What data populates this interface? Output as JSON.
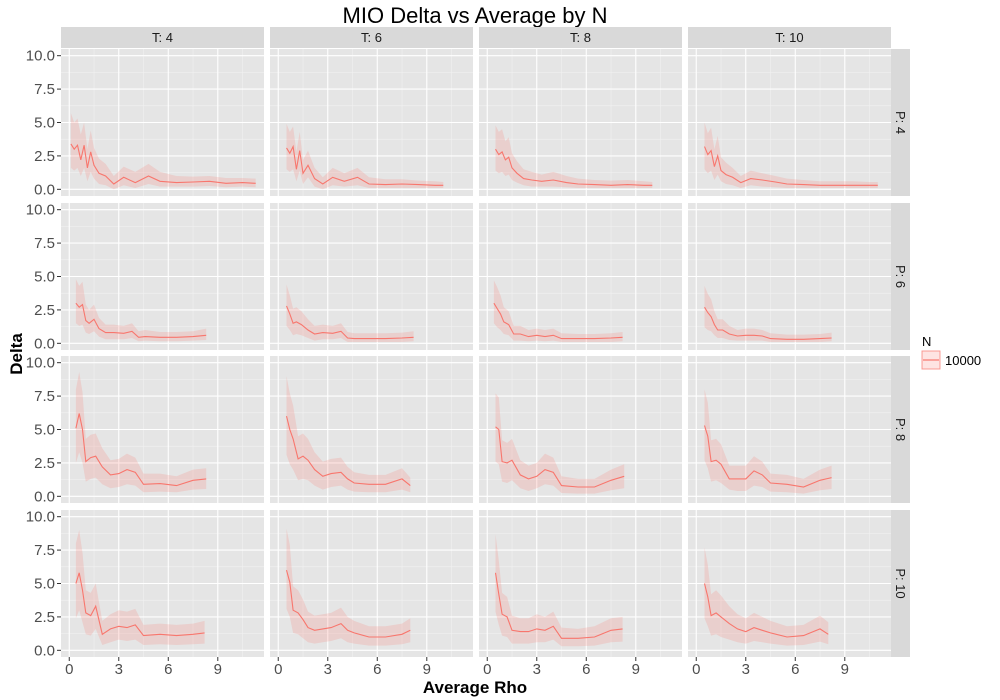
{
  "chart_data": {
    "type": "line",
    "title": "MIO Delta vs Average by N",
    "xlabel": "Average Rho",
    "ylabel": "Delta",
    "xlim": [
      -0.5,
      11.8
    ],
    "ylim": [
      -0.5,
      10.5
    ],
    "x_ticks": [
      0,
      3,
      6,
      9
    ],
    "x_tick_labels": [
      "0",
      "3",
      "6",
      "9"
    ],
    "y_ticks": [
      0,
      2.5,
      5,
      7.5,
      10
    ],
    "y_tick_labels": [
      "0.0",
      "2.5",
      "5.0",
      "7.5",
      "10.0"
    ],
    "grid": true,
    "legend": {
      "title": "N",
      "position": "right",
      "entries": [
        {
          "label": "10000",
          "color": "#f8766d"
        }
      ]
    },
    "facet_cols": [
      "T: 4",
      "T: 6",
      "T: 8",
      "T: 10"
    ],
    "facet_rows": [
      "P: 4",
      "P: 6",
      "P: 8",
      "P: 10"
    ],
    "line_color": "#f8766d",
    "ribbon_color": "#f8766d",
    "panels": [
      {
        "row": 0,
        "col": 0,
        "x": [
          0.1,
          0.3,
          0.5,
          0.7,
          0.9,
          1.1,
          1.3,
          1.5,
          1.8,
          2.2,
          2.7,
          3.3,
          4.0,
          4.8,
          5.5,
          6.5,
          7.5,
          8.5,
          9.5,
          10.5,
          11.3
        ],
        "y": [
          3.4,
          3.0,
          3.3,
          2.2,
          3.3,
          1.6,
          2.8,
          1.8,
          1.2,
          1.0,
          0.4,
          0.9,
          0.5,
          1.0,
          0.6,
          0.5,
          0.55,
          0.6,
          0.45,
          0.5,
          0.45
        ],
        "lower": [
          1.6,
          1.4,
          1.6,
          1.0,
          1.6,
          0.6,
          1.3,
          0.8,
          0.4,
          0.3,
          0.0,
          0.3,
          0.1,
          0.4,
          0.2,
          0.2,
          0.2,
          0.25,
          0.15,
          0.2,
          0.15
        ],
        "upper": [
          5.7,
          5.0,
          5.3,
          4.1,
          5.0,
          3.0,
          4.4,
          3.1,
          2.3,
          1.9,
          1.0,
          1.7,
          1.3,
          1.9,
          1.3,
          1.0,
          0.95,
          1.0,
          0.85,
          0.85,
          0.8
        ]
      },
      {
        "row": 0,
        "col": 1,
        "x": [
          0.5,
          0.7,
          0.9,
          1.1,
          1.3,
          1.5,
          1.8,
          2.2,
          2.7,
          3.3,
          4.0,
          4.8,
          5.5,
          6.5,
          7.5,
          8.5,
          9.5,
          10.0
        ],
        "y": [
          3.1,
          2.7,
          3.2,
          1.5,
          2.9,
          1.2,
          1.8,
          0.8,
          0.4,
          0.9,
          0.6,
          0.9,
          0.4,
          0.35,
          0.4,
          0.35,
          0.3,
          0.3
        ],
        "lower": [
          1.5,
          1.3,
          1.5,
          0.6,
          1.4,
          0.4,
          0.9,
          0.2,
          0.0,
          0.3,
          0.2,
          0.3,
          0.1,
          0.1,
          0.1,
          0.1,
          0.1,
          0.1
        ],
        "upper": [
          4.9,
          4.3,
          4.7,
          2.8,
          4.3,
          2.2,
          2.9,
          1.6,
          0.9,
          1.6,
          1.2,
          1.6,
          0.9,
          0.75,
          0.75,
          0.65,
          0.6,
          0.55
        ]
      },
      {
        "row": 0,
        "col": 2,
        "x": [
          0.5,
          0.7,
          0.9,
          1.1,
          1.3,
          1.5,
          1.8,
          2.2,
          2.7,
          3.3,
          4.0,
          4.8,
          5.5,
          6.5,
          7.5,
          8.5,
          9.5,
          10.0
        ],
        "y": [
          3.0,
          2.6,
          2.8,
          2.2,
          2.4,
          1.6,
          1.2,
          0.8,
          0.7,
          0.6,
          0.7,
          0.5,
          0.4,
          0.35,
          0.3,
          0.35,
          0.3,
          0.3
        ],
        "lower": [
          1.4,
          1.2,
          1.3,
          1.0,
          1.1,
          0.7,
          0.5,
          0.3,
          0.2,
          0.2,
          0.2,
          0.15,
          0.1,
          0.1,
          0.1,
          0.1,
          0.1,
          0.1
        ],
        "upper": [
          4.8,
          4.3,
          4.5,
          3.6,
          3.9,
          2.7,
          2.1,
          1.5,
          1.3,
          1.1,
          1.3,
          1.0,
          0.8,
          0.7,
          0.65,
          0.7,
          0.6,
          0.55
        ]
      },
      {
        "row": 0,
        "col": 3,
        "x": [
          0.5,
          0.7,
          0.9,
          1.1,
          1.3,
          1.5,
          1.8,
          2.2,
          2.7,
          3.3,
          4.0,
          4.8,
          5.5,
          6.5,
          7.5,
          8.5,
          9.5,
          10.5,
          11.0
        ],
        "y": [
          3.2,
          2.6,
          2.9,
          1.7,
          2.5,
          1.4,
          1.1,
          0.9,
          0.5,
          0.8,
          0.7,
          0.55,
          0.4,
          0.35,
          0.3,
          0.3,
          0.3,
          0.3,
          0.3
        ],
        "lower": [
          1.5,
          1.2,
          1.4,
          0.7,
          1.1,
          0.6,
          0.4,
          0.3,
          0.1,
          0.3,
          0.2,
          0.15,
          0.1,
          0.1,
          0.1,
          0.1,
          0.1,
          0.1,
          0.1
        ],
        "upper": [
          5.0,
          4.2,
          4.6,
          3.0,
          4.0,
          2.4,
          2.0,
          1.6,
          1.0,
          1.4,
          1.2,
          1.0,
          0.8,
          0.7,
          0.6,
          0.6,
          0.6,
          0.55,
          0.55
        ]
      },
      {
        "row": 1,
        "col": 0,
        "x": [
          0.4,
          0.6,
          0.8,
          1.0,
          1.2,
          1.5,
          1.8,
          2.2,
          2.7,
          3.3,
          3.8,
          4.2,
          4.6,
          5.5,
          6.5,
          7.5,
          8.3
        ],
        "y": [
          3.0,
          2.7,
          2.9,
          1.7,
          1.5,
          1.8,
          1.1,
          0.8,
          0.8,
          0.75,
          0.9,
          0.45,
          0.5,
          0.45,
          0.45,
          0.5,
          0.6
        ],
        "lower": [
          1.5,
          1.3,
          1.4,
          0.8,
          0.7,
          0.9,
          0.5,
          0.3,
          0.3,
          0.3,
          0.4,
          0.15,
          0.2,
          0.15,
          0.15,
          0.2,
          0.25
        ],
        "upper": [
          4.8,
          4.3,
          4.6,
          2.9,
          2.5,
          2.9,
          1.9,
          1.4,
          1.4,
          1.3,
          1.5,
          0.9,
          1.0,
          0.85,
          0.85,
          0.9,
          1.1
        ]
      },
      {
        "row": 1,
        "col": 1,
        "x": [
          0.5,
          0.7,
          0.9,
          1.1,
          1.4,
          1.8,
          2.2,
          2.7,
          3.3,
          3.8,
          4.2,
          4.6,
          5.5,
          6.5,
          7.5,
          8.2
        ],
        "y": [
          2.8,
          2.2,
          1.5,
          1.6,
          1.4,
          1.0,
          0.7,
          0.8,
          0.75,
          0.9,
          0.4,
          0.35,
          0.35,
          0.35,
          0.4,
          0.45
        ],
        "lower": [
          1.3,
          1.0,
          0.6,
          0.7,
          0.6,
          0.4,
          0.2,
          0.3,
          0.3,
          0.4,
          0.1,
          0.1,
          0.1,
          0.1,
          0.1,
          0.15
        ],
        "upper": [
          4.4,
          3.6,
          2.6,
          2.7,
          2.4,
          1.8,
          1.3,
          1.4,
          1.3,
          1.5,
          0.85,
          0.75,
          0.75,
          0.75,
          0.8,
          0.9
        ]
      },
      {
        "row": 1,
        "col": 2,
        "x": [
          0.4,
          0.6,
          0.8,
          1.0,
          1.3,
          1.6,
          2.0,
          2.5,
          3.0,
          3.5,
          4.0,
          4.5,
          5.5,
          6.5,
          7.5,
          8.2
        ],
        "y": [
          3.0,
          2.6,
          2.2,
          1.6,
          1.4,
          0.7,
          0.7,
          0.5,
          0.6,
          0.5,
          0.6,
          0.35,
          0.35,
          0.35,
          0.4,
          0.45
        ],
        "lower": [
          1.5,
          1.2,
          1.0,
          0.7,
          0.6,
          0.2,
          0.2,
          0.15,
          0.2,
          0.15,
          0.2,
          0.1,
          0.1,
          0.1,
          0.1,
          0.15
        ],
        "upper": [
          4.7,
          4.2,
          3.6,
          2.7,
          2.4,
          1.3,
          1.3,
          1.0,
          1.1,
          1.0,
          1.1,
          0.75,
          0.7,
          0.7,
          0.75,
          0.85
        ]
      },
      {
        "row": 1,
        "col": 3,
        "x": [
          0.5,
          0.7,
          0.9,
          1.1,
          1.3,
          1.6,
          2.0,
          2.5,
          3.0,
          3.5,
          4.0,
          4.5,
          5.5,
          6.5,
          7.5,
          8.2
        ],
        "y": [
          2.7,
          2.3,
          2.0,
          1.4,
          1.0,
          1.0,
          0.7,
          0.55,
          0.6,
          0.6,
          0.55,
          0.35,
          0.3,
          0.3,
          0.35,
          0.4
        ],
        "lower": [
          1.2,
          1.0,
          0.9,
          0.6,
          0.4,
          0.4,
          0.25,
          0.2,
          0.2,
          0.2,
          0.2,
          0.1,
          0.1,
          0.1,
          0.1,
          0.15
        ],
        "upper": [
          4.3,
          3.7,
          3.3,
          2.4,
          1.8,
          1.8,
          1.3,
          1.0,
          1.1,
          1.1,
          1.0,
          0.75,
          0.65,
          0.65,
          0.7,
          0.8
        ]
      },
      {
        "row": 2,
        "col": 0,
        "x": [
          0.4,
          0.6,
          0.8,
          1.0,
          1.3,
          1.6,
          2.0,
          2.5,
          3.0,
          3.5,
          4.0,
          4.5,
          5.5,
          6.5,
          7.5,
          8.3
        ],
        "y": [
          5.1,
          6.2,
          5.0,
          2.6,
          2.9,
          3.0,
          2.2,
          1.6,
          1.7,
          2.0,
          1.8,
          0.9,
          0.95,
          0.8,
          1.2,
          1.3
        ],
        "lower": [
          2.5,
          3.3,
          2.5,
          1.1,
          1.3,
          1.4,
          0.9,
          0.6,
          0.7,
          0.9,
          0.8,
          0.3,
          0.35,
          0.3,
          0.5,
          0.55
        ],
        "upper": [
          8.0,
          9.3,
          7.8,
          4.3,
          4.6,
          4.7,
          3.6,
          2.7,
          2.8,
          3.2,
          2.9,
          1.7,
          1.7,
          1.5,
          2.0,
          2.1
        ]
      },
      {
        "row": 2,
        "col": 1,
        "x": [
          0.5,
          0.7,
          0.9,
          1.2,
          1.5,
          1.8,
          2.2,
          2.7,
          3.2,
          3.8,
          4.2,
          4.6,
          5.5,
          6.5,
          7.5,
          8.0
        ],
        "y": [
          6.0,
          5.0,
          4.3,
          2.8,
          3.0,
          2.7,
          2.0,
          1.5,
          1.7,
          1.8,
          1.3,
          1.0,
          0.9,
          0.9,
          1.3,
          0.8
        ],
        "lower": [
          3.1,
          2.4,
          2.0,
          1.2,
          1.3,
          1.2,
          0.8,
          0.5,
          0.7,
          0.8,
          0.5,
          0.35,
          0.3,
          0.3,
          0.5,
          0.3
        ],
        "upper": [
          9.0,
          7.7,
          6.8,
          4.5,
          4.7,
          4.3,
          3.3,
          2.6,
          2.8,
          2.9,
          2.2,
          1.8,
          1.6,
          1.6,
          2.1,
          1.4
        ]
      },
      {
        "row": 2,
        "col": 2,
        "x": [
          0.5,
          0.7,
          0.9,
          1.2,
          1.5,
          2.0,
          2.5,
          3.0,
          3.5,
          4.0,
          4.5,
          5.5,
          6.5,
          7.5,
          8.3
        ],
        "y": [
          5.2,
          5.0,
          2.6,
          2.5,
          2.7,
          1.6,
          1.3,
          1.5,
          2.0,
          1.8,
          0.8,
          0.7,
          0.7,
          1.2,
          1.5
        ],
        "lower": [
          2.6,
          2.4,
          1.1,
          1.0,
          1.2,
          0.6,
          0.4,
          0.6,
          0.9,
          0.8,
          0.25,
          0.2,
          0.2,
          0.45,
          0.6
        ],
        "upper": [
          7.7,
          7.4,
          4.2,
          4.0,
          4.3,
          2.7,
          2.3,
          2.5,
          3.2,
          2.9,
          1.5,
          1.3,
          1.3,
          2.0,
          2.4
        ]
      },
      {
        "row": 2,
        "col": 3,
        "x": [
          0.5,
          0.7,
          0.9,
          1.2,
          1.5,
          2.0,
          2.5,
          3.0,
          3.5,
          4.0,
          4.5,
          5.5,
          6.5,
          7.5,
          8.2
        ],
        "y": [
          5.3,
          4.5,
          2.6,
          2.7,
          2.4,
          1.3,
          1.3,
          1.3,
          1.9,
          1.6,
          1.0,
          0.9,
          0.7,
          1.2,
          1.4
        ],
        "lower": [
          2.7,
          2.1,
          1.1,
          1.2,
          1.0,
          0.5,
          0.4,
          0.4,
          0.8,
          0.7,
          0.35,
          0.3,
          0.2,
          0.45,
          0.55
        ],
        "upper": [
          8.0,
          7.0,
          4.2,
          4.3,
          3.9,
          2.3,
          2.3,
          2.3,
          3.0,
          2.6,
          1.7,
          1.6,
          1.3,
          2.0,
          2.3
        ]
      },
      {
        "row": 3,
        "col": 0,
        "x": [
          0.4,
          0.6,
          0.8,
          1.0,
          1.3,
          1.6,
          2.0,
          2.5,
          3.0,
          3.5,
          4.0,
          4.5,
          5.5,
          6.5,
          7.5,
          8.2
        ],
        "y": [
          5.0,
          5.8,
          4.5,
          2.8,
          2.6,
          3.3,
          1.2,
          1.6,
          1.8,
          1.7,
          1.9,
          1.1,
          1.2,
          1.1,
          1.2,
          1.3
        ],
        "lower": [
          2.4,
          3.0,
          2.1,
          1.2,
          1.1,
          1.6,
          0.4,
          0.6,
          0.8,
          0.7,
          0.8,
          0.4,
          0.45,
          0.4,
          0.45,
          0.5
        ],
        "upper": [
          8.0,
          9.0,
          7.3,
          4.5,
          4.3,
          5.0,
          2.2,
          2.7,
          3.0,
          2.9,
          3.1,
          1.9,
          2.0,
          1.9,
          2.0,
          2.2
        ]
      },
      {
        "row": 3,
        "col": 1,
        "x": [
          0.5,
          0.7,
          0.9,
          1.2,
          1.5,
          1.8,
          2.2,
          2.7,
          3.2,
          3.8,
          4.2,
          4.6,
          5.5,
          6.5,
          7.5,
          8.0
        ],
        "y": [
          6.0,
          5.1,
          3.0,
          2.8,
          2.3,
          1.7,
          1.5,
          1.6,
          1.7,
          2.0,
          1.5,
          1.3,
          1.0,
          1.0,
          1.2,
          1.5
        ],
        "lower": [
          3.1,
          2.5,
          1.3,
          1.2,
          0.9,
          0.6,
          0.5,
          0.6,
          0.7,
          0.9,
          0.6,
          0.5,
          0.35,
          0.35,
          0.45,
          0.6
        ],
        "upper": [
          9.1,
          7.9,
          4.8,
          4.5,
          3.8,
          2.9,
          2.6,
          2.7,
          2.8,
          3.2,
          2.5,
          2.2,
          1.8,
          1.8,
          2.0,
          2.4
        ]
      },
      {
        "row": 3,
        "col": 2,
        "x": [
          0.5,
          0.7,
          0.9,
          1.2,
          1.5,
          2.0,
          2.5,
          3.0,
          3.5,
          4.0,
          4.5,
          5.5,
          6.5,
          7.5,
          8.2
        ],
        "y": [
          5.8,
          4.2,
          2.7,
          2.5,
          1.5,
          1.4,
          1.4,
          1.6,
          1.5,
          1.8,
          0.9,
          0.9,
          1.0,
          1.5,
          1.6
        ],
        "lower": [
          2.9,
          1.9,
          1.1,
          1.0,
          0.5,
          0.5,
          0.5,
          0.6,
          0.6,
          0.8,
          0.3,
          0.3,
          0.35,
          0.6,
          0.65
        ],
        "upper": [
          8.7,
          6.7,
          4.3,
          4.0,
          2.6,
          2.4,
          2.4,
          2.7,
          2.5,
          2.9,
          1.7,
          1.6,
          1.8,
          2.4,
          2.5
        ]
      },
      {
        "row": 3,
        "col": 3,
        "x": [
          0.5,
          0.7,
          0.9,
          1.2,
          1.5,
          2.0,
          2.5,
          3.0,
          3.5,
          4.0,
          4.5,
          5.5,
          6.5,
          7.5,
          8.0
        ],
        "y": [
          5.0,
          4.0,
          2.6,
          2.8,
          2.5,
          2.0,
          1.6,
          1.4,
          1.7,
          1.5,
          1.3,
          1.0,
          1.1,
          1.6,
          1.2
        ],
        "lower": [
          2.4,
          1.8,
          1.1,
          1.2,
          1.0,
          0.8,
          0.6,
          0.5,
          0.7,
          0.6,
          0.5,
          0.35,
          0.4,
          0.65,
          0.45
        ],
        "upper": [
          7.7,
          6.4,
          4.2,
          4.5,
          4.1,
          3.3,
          2.7,
          2.4,
          2.8,
          2.5,
          2.2,
          1.8,
          1.9,
          2.6,
          2.1
        ]
      }
    ]
  }
}
